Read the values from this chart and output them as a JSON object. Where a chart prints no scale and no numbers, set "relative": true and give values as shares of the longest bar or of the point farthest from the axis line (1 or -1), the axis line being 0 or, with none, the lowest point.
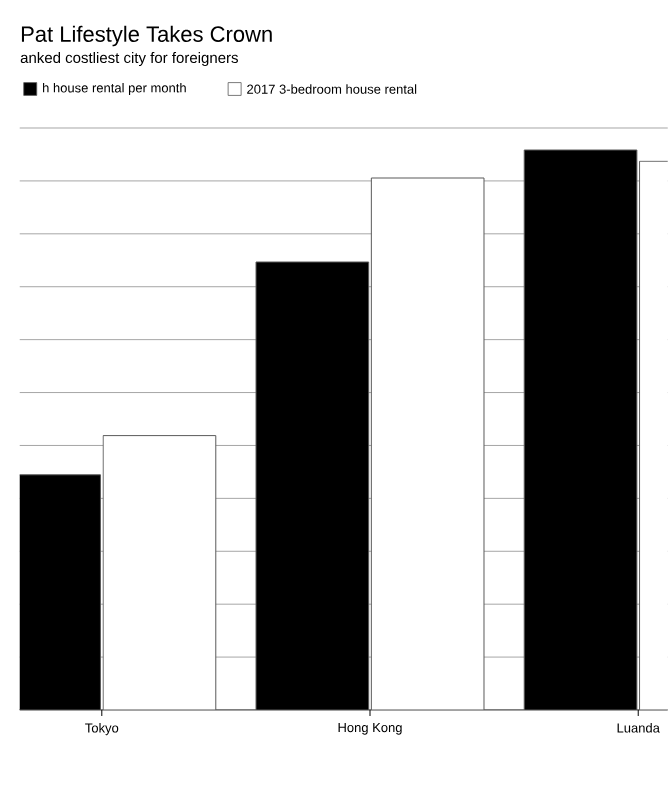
{
  "chart_data": {
    "type": "bar",
    "title": "Pat Lifestyle Takes Crown",
    "subtitle": "anked costliest city for foreigners",
    "categories": [
      "Tokyo",
      "Hong Kong",
      "Luanda"
    ],
    "relative": true,
    "grid": "y",
    "tick_labels": "x",
    "legend": "top left",
    "series": [
      {
        "name": "h house rental per month",
        "color": "#000000",
        "values": [
          0.42,
          0.8,
          1.0
        ]
      },
      {
        "name": "2017 3-bedroom house rental",
        "color": "#ffffff",
        "values": [
          0.49,
          0.95,
          0.98
        ]
      }
    ]
  }
}
